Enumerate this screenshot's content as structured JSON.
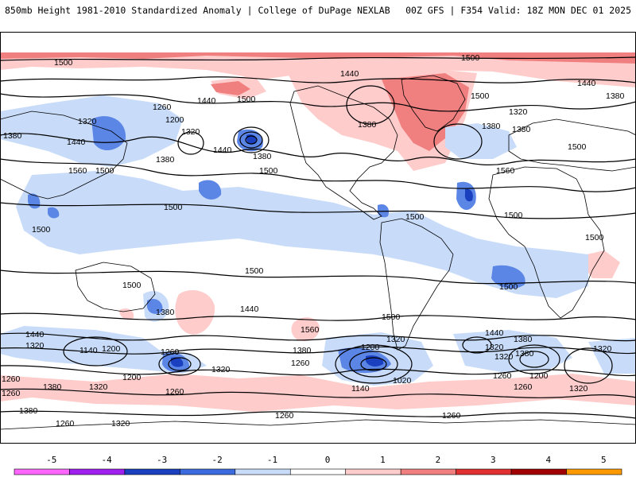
{
  "header": {
    "title": "850mb Height 1981-2010 Standardized Anomaly | College of DuPage NEXLAB",
    "run_info": "00Z GFS | F354 Valid: 18Z MON DEC 01 2025"
  },
  "map": {
    "contour_labels": [
      "1500",
      "1500",
      "1440",
      "1440",
      "1500",
      "1500",
      "1260",
      "1320",
      "1440",
      "1380",
      "1200",
      "1320",
      "1380",
      "1380",
      "1380",
      "1440",
      "1380",
      "1320",
      "1380",
      "1560",
      "1440",
      "1500",
      "1380",
      "1560",
      "1500",
      "1500",
      "1500",
      "1500",
      "1500",
      "1500",
      "1500",
      "1500",
      "1500",
      "1440",
      "1380",
      "1500",
      "1560",
      "1500",
      "1440",
      "1380",
      "1320",
      "1260",
      "1140",
      "1200",
      "1200",
      "1260",
      "1320",
      "1200",
      "1260",
      "1380",
      "1320",
      "1260",
      "1380",
      "1320",
      "1260",
      "1140",
      "1020",
      "1260",
      "1320",
      "1200",
      "1380",
      "1260",
      "1320",
      "1440",
      "1320",
      "1320",
      "1380",
      "1260",
      "1260",
      "1320",
      "1260"
    ]
  },
  "colorbar": {
    "ticks": [
      "-5",
      "-4",
      "-3",
      "-2",
      "-1",
      "0",
      "1",
      "2",
      "3",
      "4",
      "5"
    ],
    "colors": [
      "#ff66ff",
      "#a020f0",
      "#1a3fbf",
      "#3c6be0",
      "#c8dcfa",
      "#ffffff",
      "#ffcccc",
      "#f08080",
      "#e03030",
      "#a00000",
      "#ff9900"
    ]
  }
}
